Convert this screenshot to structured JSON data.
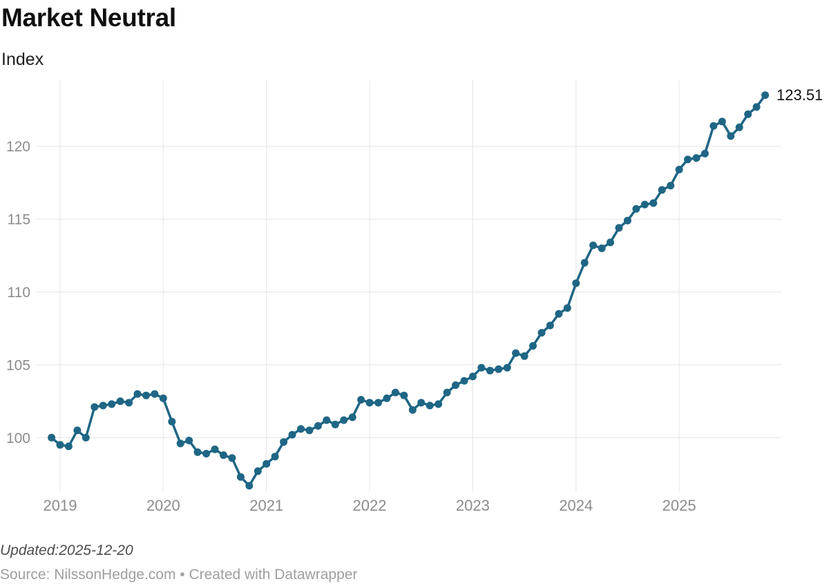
{
  "header": {
    "title": "Market Neutral",
    "subtitle": "Index"
  },
  "footer": {
    "updated": "Updated:2025-12-20",
    "source": "Source: NilssonHedge.com • Created with Datawrapper"
  },
  "chart_data": {
    "type": "line",
    "title": "Market Neutral",
    "ylabel": "Index",
    "xlabel": "",
    "legend": "none",
    "grid": "on",
    "line_color": "#1f6685",
    "marker": "circle",
    "end_label": "123.51",
    "x_tick_labels": [
      "2019",
      "2020",
      "2021",
      "2022",
      "2023",
      "2024",
      "2025"
    ],
    "y_ticks": [
      100,
      105,
      110,
      115,
      120
    ],
    "y_tick_labels": [
      "100",
      "105",
      "110",
      "115",
      "120"
    ],
    "ylim": [
      96.2,
      124.6
    ],
    "x": [
      "2018-12",
      "2019-01",
      "2019-02",
      "2019-03",
      "2019-04",
      "2019-05",
      "2019-06",
      "2019-07",
      "2019-08",
      "2019-09",
      "2019-10",
      "2019-11",
      "2019-12",
      "2020-01",
      "2020-02",
      "2020-03",
      "2020-04",
      "2020-05",
      "2020-06",
      "2020-07",
      "2020-08",
      "2020-09",
      "2020-10",
      "2020-11",
      "2020-12",
      "2021-01",
      "2021-02",
      "2021-03",
      "2021-04",
      "2021-05",
      "2021-06",
      "2021-07",
      "2021-08",
      "2021-09",
      "2021-10",
      "2021-11",
      "2021-12",
      "2022-01",
      "2022-02",
      "2022-03",
      "2022-04",
      "2022-05",
      "2022-06",
      "2022-07",
      "2022-08",
      "2022-09",
      "2022-10",
      "2022-11",
      "2022-12",
      "2023-01",
      "2023-02",
      "2023-03",
      "2023-04",
      "2023-05",
      "2023-06",
      "2023-07",
      "2023-08",
      "2023-09",
      "2023-10",
      "2023-11",
      "2023-12",
      "2024-01",
      "2024-02",
      "2024-03",
      "2024-04",
      "2024-05",
      "2024-06",
      "2024-07",
      "2024-08",
      "2024-09",
      "2024-10",
      "2024-11",
      "2024-12",
      "2025-01",
      "2025-02",
      "2025-03",
      "2025-04",
      "2025-05",
      "2025-06",
      "2025-07",
      "2025-08",
      "2025-09",
      "2025-10",
      "2025-11"
    ],
    "values": [
      100.0,
      99.5,
      99.4,
      100.5,
      100.0,
      102.1,
      102.2,
      102.3,
      102.5,
      102.4,
      103.0,
      102.9,
      103.0,
      102.7,
      101.1,
      99.6,
      99.8,
      99.0,
      98.9,
      99.2,
      98.8,
      98.6,
      97.3,
      96.7,
      97.7,
      98.2,
      98.7,
      99.7,
      100.2,
      100.6,
      100.5,
      100.8,
      101.2,
      100.9,
      101.2,
      101.4,
      102.6,
      102.4,
      102.4,
      102.7,
      103.1,
      102.9,
      101.9,
      102.4,
      102.2,
      102.3,
      103.1,
      103.6,
      103.9,
      104.2,
      104.8,
      104.6,
      104.7,
      104.8,
      105.8,
      105.6,
      106.3,
      107.2,
      107.7,
      108.5,
      108.9,
      110.6,
      112.0,
      113.2,
      113.0,
      113.4,
      114.4,
      114.9,
      115.7,
      116.0,
      116.1,
      117.0,
      117.3,
      118.4,
      119.1,
      119.2,
      119.5,
      121.4,
      121.7,
      120.7,
      121.3,
      122.2,
      122.7,
      123.51
    ],
    "colors": {
      "grid": "#e4e4e4",
      "tick_text": "#8c8c8c",
      "end_label_text": "#111111"
    }
  }
}
